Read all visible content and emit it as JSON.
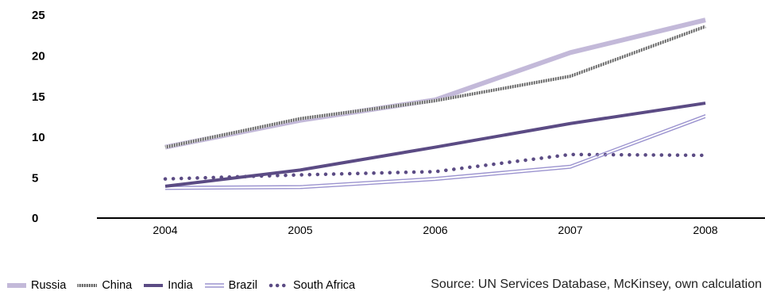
{
  "chart_data": {
    "type": "line",
    "categories": [
      "2004",
      "2005",
      "2006",
      "2007",
      "2008"
    ],
    "ylim": [
      0,
      25
    ],
    "yticks": [
      0,
      5,
      10,
      15,
      20,
      25
    ],
    "grid": false,
    "legend_position": "bottom-left",
    "series": [
      {
        "name": "Russia",
        "values": [
          8.7,
          12.0,
          14.5,
          20.3,
          24.3
        ],
        "color": "#c3b9d9",
        "style": "thick-solid"
      },
      {
        "name": "China",
        "values": [
          8.7,
          12.2,
          14.4,
          17.4,
          23.5
        ],
        "color": "#7f7f7f",
        "style": "hatched"
      },
      {
        "name": "India",
        "values": [
          3.9,
          5.9,
          8.7,
          11.6,
          14.1
        ],
        "color": "#5b4b84",
        "style": "solid"
      },
      {
        "name": "Brazil",
        "values": [
          3.7,
          3.8,
          4.8,
          6.3,
          12.5
        ],
        "color": "#9b93cf",
        "style": "double"
      },
      {
        "name": "South Africa",
        "values": [
          4.8,
          5.3,
          5.7,
          7.8,
          7.7
        ],
        "color": "#5b4b84",
        "style": "dotted"
      }
    ]
  },
  "source": "Source: UN Services Database, McKinsey, own calculation"
}
